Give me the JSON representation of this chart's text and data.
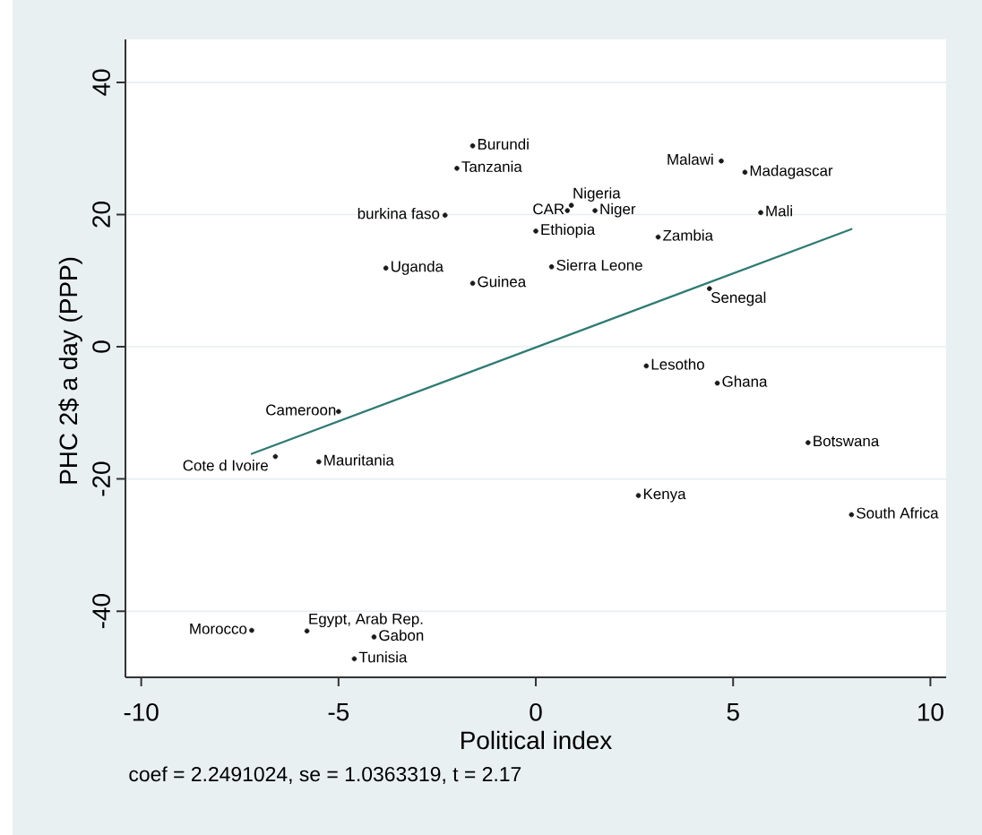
{
  "chart_data": {
    "type": "scatter",
    "xlabel": "Political index",
    "ylabel": "PHC 2$ a day (PPP)",
    "xlim": [
      -10.4,
      10.4
    ],
    "ylim": [
      -50,
      46.5
    ],
    "xticks": [
      -10,
      -5,
      0,
      5,
      10
    ],
    "yticks": [
      -40,
      -20,
      0,
      20,
      40
    ],
    "grid": "y",
    "marker": "circle",
    "series": [
      {
        "color": "#1a1a1a",
        "x": [
          -1.6,
          4.7,
          -2.0,
          5.3,
          0.9,
          0.8,
          1.5,
          5.7,
          -2.3,
          0.0,
          3.1,
          0.4,
          -3.8,
          -1.6,
          4.4,
          2.8,
          4.6,
          -5.0,
          6.9,
          -6.6,
          -5.5,
          2.6,
          8.0,
          -7.2,
          -5.8,
          -4.1,
          -4.6
        ],
        "values": [
          30.4,
          28.1,
          27.0,
          26.4,
          21.4,
          20.6,
          20.6,
          20.3,
          19.9,
          17.5,
          16.6,
          12.1,
          11.9,
          9.6,
          8.8,
          -2.9,
          -5.5,
          -9.8,
          -14.5,
          -16.6,
          -17.4,
          -22.5,
          -25.4,
          -42.9,
          -43.0,
          -43.9,
          -47.2
        ]
      },
      {
        "type": "line",
        "color": "#2e7a72",
        "marker": "none",
        "line_style": "solid",
        "x": [
          -7.2,
          8.0
        ],
        "values": [
          -16.2,
          17.8
        ]
      }
    ],
    "annotations": [
      {
        "text": "Burundi",
        "x": -1.6,
        "y": 30.4
      },
      {
        "text": "Malawi",
        "x": 4.7,
        "y": 28.1
      },
      {
        "text": "Tanzania",
        "x": -2.0,
        "y": 27.0
      },
      {
        "text": "Madagascar",
        "x": 5.3,
        "y": 26.4
      },
      {
        "text": "Nigeria",
        "x": 0.9,
        "y": 21.4
      },
      {
        "text": "CAR",
        "x": 0.8,
        "y": 20.6
      },
      {
        "text": "Niger",
        "x": 1.5,
        "y": 20.6
      },
      {
        "text": "Mali",
        "x": 5.7,
        "y": 20.3
      },
      {
        "text": "burkina faso",
        "x": -2.3,
        "y": 19.9
      },
      {
        "text": "Ethiopia",
        "x": 0.0,
        "y": 17.5
      },
      {
        "text": "Zambia",
        "x": 3.1,
        "y": 16.6
      },
      {
        "text": "Sierra Leone",
        "x": 0.4,
        "y": 12.1
      },
      {
        "text": "Uganda",
        "x": -3.8,
        "y": 11.9
      },
      {
        "text": "Guinea",
        "x": -1.6,
        "y": 9.6
      },
      {
        "text": "Senegal",
        "x": 4.4,
        "y": 8.8
      },
      {
        "text": "Lesotho",
        "x": 2.8,
        "y": -2.9
      },
      {
        "text": "Ghana",
        "x": 4.6,
        "y": -5.5
      },
      {
        "text": "Cameroon",
        "x": -5.0,
        "y": -9.8
      },
      {
        "text": "Botswana",
        "x": 6.9,
        "y": -14.5
      },
      {
        "text": "Cote d Ivoire",
        "x": -6.6,
        "y": -16.6
      },
      {
        "text": "Mauritania",
        "x": -5.5,
        "y": -17.4
      },
      {
        "text": "Kenya",
        "x": 2.6,
        "y": -22.5
      },
      {
        "text": "South Africa",
        "x": 8.0,
        "y": -25.4
      },
      {
        "text": "Morocco",
        "x": -7.2,
        "y": -42.9
      },
      {
        "text": "Egypt, Arab Rep.",
        "x": -5.8,
        "y": -43.0
      },
      {
        "text": "Gabon",
        "x": -4.1,
        "y": -43.9
      },
      {
        "text": "Tunisia",
        "x": -4.6,
        "y": -47.2
      },
      "coef = 2.2491024, se = 1.0363319, t = 2.17"
    ]
  }
}
